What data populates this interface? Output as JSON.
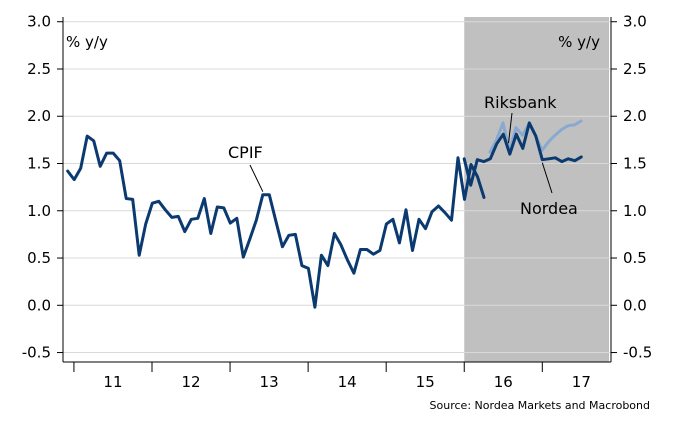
{
  "chart_data": {
    "type": "line",
    "unit_label_left": "% y/y",
    "unit_label_right": "% y/y",
    "ylim": [
      -0.6,
      3.05
    ],
    "yticks": [
      "3.0",
      "2.5",
      "2.0",
      "1.5",
      "1.0",
      "0.5",
      "0.0",
      "-0.5"
    ],
    "ytick_values": [
      3.0,
      2.5,
      2.0,
      1.5,
      1.0,
      0.5,
      0.0,
      -0.5
    ],
    "xlim": [
      2010.86,
      2017.88
    ],
    "year_labels": [
      {
        "label": "11",
        "start": 2011
      },
      {
        "label": "12",
        "start": 2012
      },
      {
        "label": "13",
        "start": 2013
      },
      {
        "label": "14",
        "start": 2014
      },
      {
        "label": "15",
        "start": 2015
      },
      {
        "label": "16",
        "start": 2016
      },
      {
        "label": "17",
        "start": 2017
      }
    ],
    "forecast_period": {
      "start": 2016.0,
      "end": 2017.88,
      "color": "#c0c0c0"
    },
    "series": [
      {
        "name": "CPIF",
        "color": "#0a3a70",
        "start": 2010.92,
        "step": 0.083333,
        "values": [
          1.42,
          1.33,
          1.45,
          1.79,
          1.74,
          1.47,
          1.61,
          1.61,
          1.53,
          1.13,
          1.12,
          0.53,
          0.86,
          1.08,
          1.1,
          1.01,
          0.93,
          0.94,
          0.78,
          0.91,
          0.92,
          1.13,
          0.76,
          1.04,
          1.03,
          0.87,
          0.92,
          0.51,
          0.7,
          0.9,
          1.17,
          1.17,
          0.89,
          0.62,
          0.74,
          0.75,
          0.42,
          0.39,
          -0.02,
          0.53,
          0.42,
          0.76,
          0.64,
          0.48,
          0.34,
          0.59,
          0.59,
          0.54,
          0.58,
          0.86,
          0.91,
          0.66,
          1.01,
          0.58,
          0.91,
          0.81,
          0.99,
          1.05,
          0.98,
          0.9,
          1.56,
          1.12,
          1.49,
          1.36,
          1.14
        ]
      },
      {
        "name": "Riksbank",
        "color": "#8aa9cf",
        "start": 2016.33,
        "step": 0.083333,
        "values": [
          1.62,
          1.75,
          1.93,
          1.63,
          1.88,
          1.8,
          1.92,
          1.8,
          1.64,
          1.73,
          1.8,
          1.86,
          1.9,
          1.91,
          1.95
        ]
      },
      {
        "name": "Nordea",
        "color": "#0a3a70",
        "start": 2016.0,
        "step": 0.083333,
        "values": [
          1.55,
          1.27,
          1.54,
          1.52,
          1.55,
          1.71,
          1.81,
          1.6,
          1.81,
          1.66,
          1.93,
          1.79,
          1.54,
          1.55,
          1.56,
          1.52,
          1.55,
          1.53,
          1.57
        ]
      }
    ],
    "annotations": [
      {
        "text": "CPIF",
        "series": "CPIF"
      },
      {
        "text": "Riksbank",
        "series": "Riksbank"
      },
      {
        "text": "Nordea",
        "series": "Nordea"
      }
    ],
    "source": "Source: Nordea Markets and Macrobond"
  }
}
